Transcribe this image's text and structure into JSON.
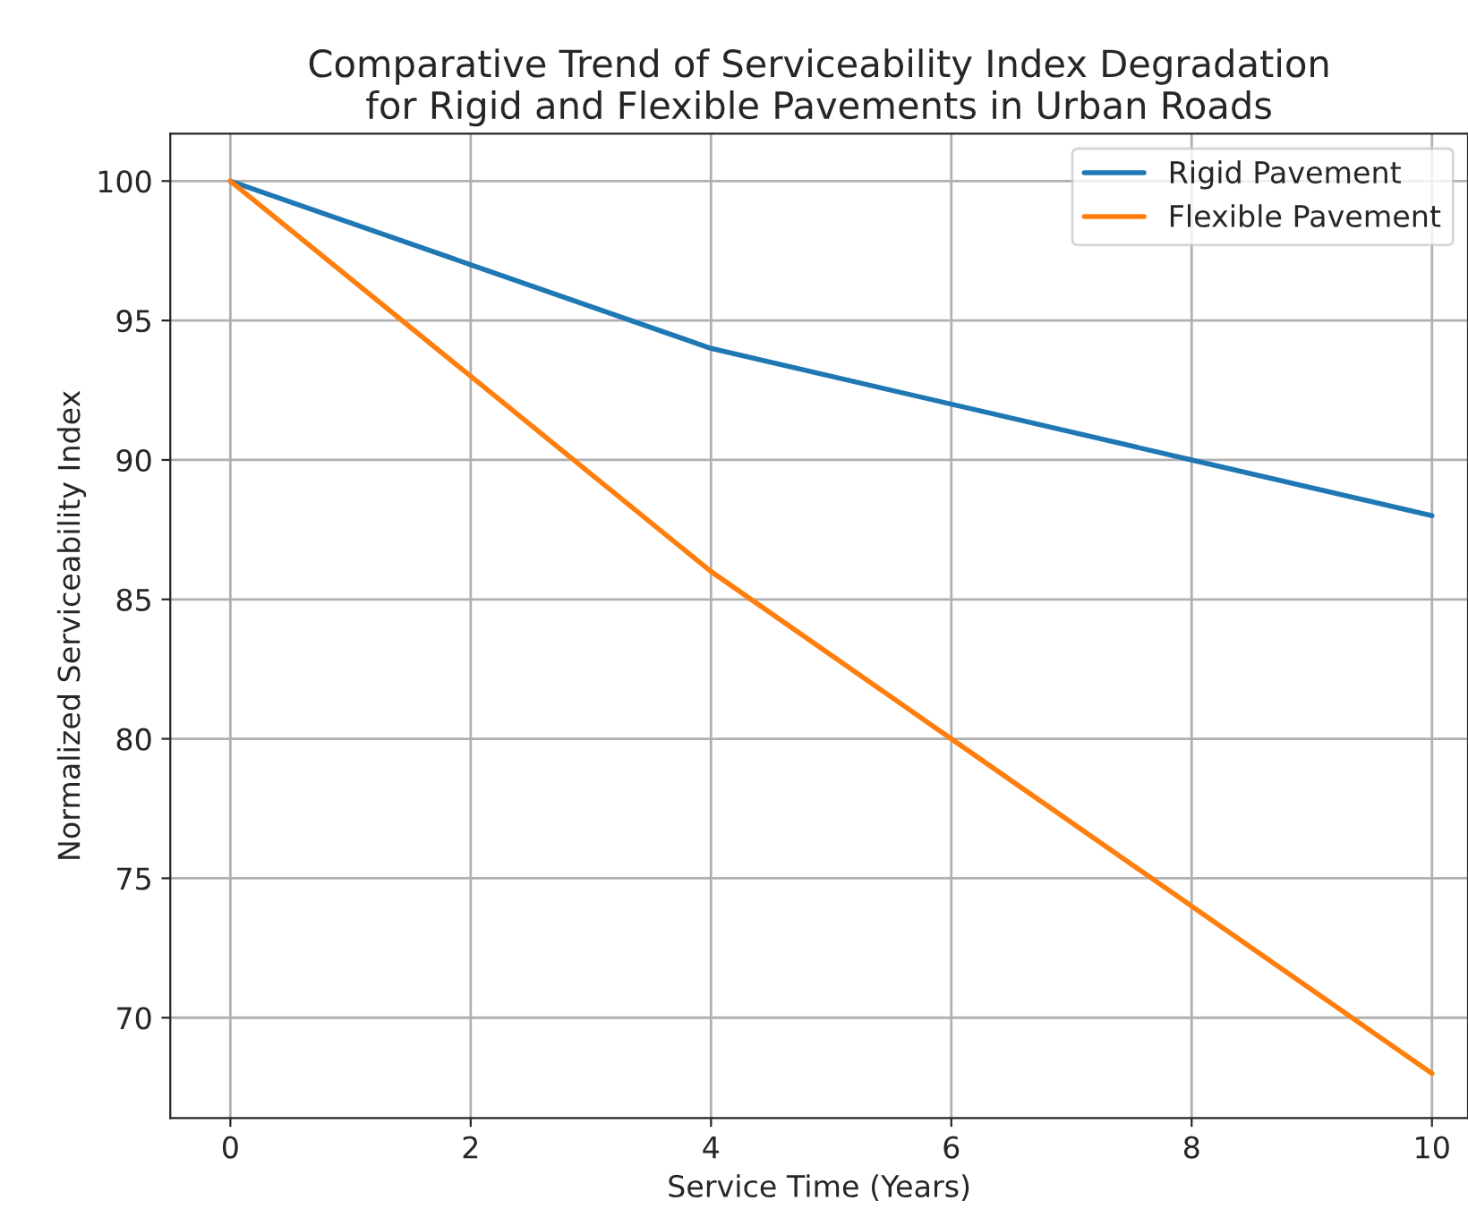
{
  "chart_data": {
    "type": "line",
    "title": "Comparative Trend of Serviceability Index Degradation\nfor Rigid and Flexible Pavements in Urban Roads",
    "xlabel": "Service Time (Years)",
    "ylabel": "Normalized Serviceability Index",
    "x": [
      0,
      2,
      4,
      6,
      8,
      10
    ],
    "series": [
      {
        "name": "Rigid Pavement",
        "color": "#1f77b4",
        "values": [
          100,
          97,
          94,
          92,
          90,
          88
        ]
      },
      {
        "name": "Flexible Pavement",
        "color": "#ff7f0e",
        "values": [
          100,
          93,
          86,
          80,
          74,
          68
        ]
      }
    ],
    "xlim": [
      -0.5,
      10.3
    ],
    "xticks": [
      0,
      2,
      4,
      6,
      8,
      10
    ],
    "ylim": [
      66.4,
      101.7
    ],
    "yticks": [
      70,
      75,
      80,
      85,
      90,
      95,
      100
    ],
    "grid": true,
    "legend": "top right",
    "marker": "none",
    "line_style": "solid"
  }
}
